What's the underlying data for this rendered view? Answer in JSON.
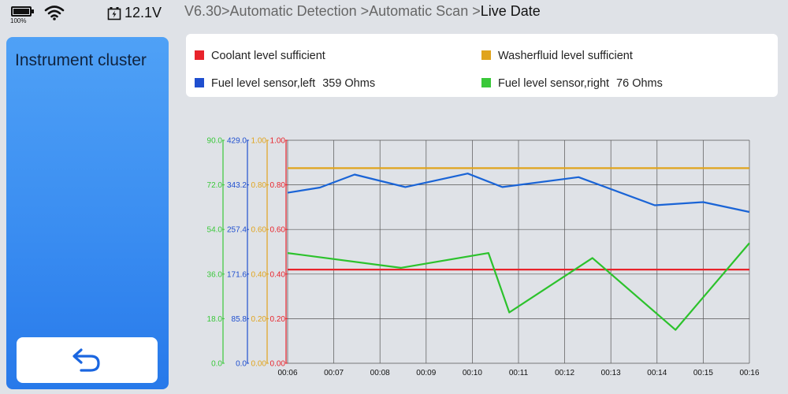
{
  "status": {
    "battery_pct": "100%",
    "voltage": "12.1V",
    "icons": [
      "battery-icon",
      "wifi-icon",
      "power-icon"
    ]
  },
  "breadcrumb": {
    "path": "V6.30>Automatic Detection >Automatic Scan >",
    "current": "Live Date"
  },
  "panel": {
    "title": "Instrument cluster",
    "back_icon": "back-arrow-icon"
  },
  "legend": [
    {
      "label": "Coolant level sufficient",
      "value": "",
      "color": "#e8232b"
    },
    {
      "label": "Washerfluid level sufficient",
      "value": "",
      "color": "#e0a41d"
    },
    {
      "label": "Fuel level sensor,left",
      "value": "359 Ohms",
      "color": "#1f4fcf"
    },
    {
      "label": "Fuel level sensor,right",
      "value": "76 Ohms",
      "color": "#3ac83a"
    }
  ],
  "chart_data": {
    "type": "line",
    "x": [
      "00:06",
      "00:07",
      "00:08",
      "00:09",
      "00:10",
      "00:11",
      "00:12",
      "00:13",
      "00:14",
      "00:15",
      "00:16"
    ],
    "x_range": [
      0,
      10
    ],
    "axes": [
      {
        "color": "#3ac83a",
        "ticks": [
          "0.0",
          "18.0",
          "36.0",
          "54.0",
          "72.0",
          "90.0"
        ],
        "ylim": [
          0,
          90
        ]
      },
      {
        "color": "#1f4fcf",
        "ticks": [
          "0.0",
          "85.8",
          "171.6",
          "257.4",
          "343.2",
          "429.0"
        ],
        "ylim": [
          0,
          429
        ]
      },
      {
        "color": "#e0a41d",
        "ticks": [
          "0.00",
          "0.20",
          "0.40",
          "0.60",
          "0.80",
          "1.00"
        ],
        "ylim": [
          0,
          1
        ]
      },
      {
        "color": "#e8232b",
        "ticks": [
          "0.00",
          "0.20",
          "0.40",
          "0.60",
          "0.80",
          "1.00"
        ],
        "ylim": [
          0,
          1
        ]
      }
    ],
    "grid": true,
    "series": [
      {
        "name": "Washerfluid level sufficient",
        "color": "#e0a41d",
        "axis": 2,
        "points": [
          [
            0,
            0.875
          ],
          [
            10,
            0.875
          ]
        ]
      },
      {
        "name": "Coolant level sufficient",
        "color": "#e8232b",
        "axis": 3,
        "points": [
          [
            0,
            0.42
          ],
          [
            10,
            0.42
          ]
        ]
      },
      {
        "name": "Fuel level sensor,left",
        "color": "#1a64d6",
        "axis": 1,
        "points": [
          [
            0,
            328
          ],
          [
            0.7,
            338
          ],
          [
            1.45,
            363
          ],
          [
            2.55,
            339
          ],
          [
            3.9,
            365
          ],
          [
            4.65,
            339
          ],
          [
            6.3,
            358
          ],
          [
            7.95,
            304
          ],
          [
            9.0,
            310
          ],
          [
            10,
            291
          ]
        ]
      },
      {
        "name": "Fuel level sensor,right",
        "color": "#2cc22c",
        "axis": 0,
        "points": [
          [
            0,
            44.5
          ],
          [
            2.45,
            38.5
          ],
          [
            4.35,
            44.5
          ],
          [
            4.8,
            20.5
          ],
          [
            6.6,
            42.5
          ],
          [
            8.4,
            13.5
          ],
          [
            10,
            48.5
          ]
        ]
      }
    ]
  }
}
